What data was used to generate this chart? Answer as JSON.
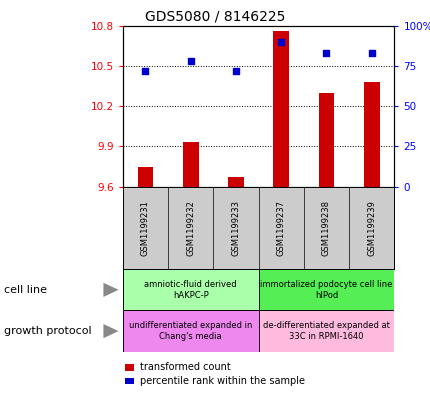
{
  "title": "GDS5080 / 8146225",
  "samples": [
    "GSM1199231",
    "GSM1199232",
    "GSM1199233",
    "GSM1199237",
    "GSM1199238",
    "GSM1199239"
  ],
  "transformed_counts": [
    9.75,
    9.93,
    9.67,
    10.76,
    10.3,
    10.38
  ],
  "percentile_ranks": [
    72,
    78,
    72,
    90,
    83,
    83
  ],
  "ylim_left": [
    9.6,
    10.8
  ],
  "ylim_right": [
    0,
    100
  ],
  "yticks_left": [
    9.6,
    9.9,
    10.2,
    10.5,
    10.8
  ],
  "yticks_right": [
    0,
    25,
    50,
    75,
    100
  ],
  "bar_color": "#cc0000",
  "dot_color": "#0000cc",
  "bar_bottom": 9.6,
  "cell_line_groups": [
    {
      "label": "amniotic-fluid derived\nhAKPC-P",
      "samples": [
        0,
        1,
        2
      ],
      "color": "#aaffaa"
    },
    {
      "label": "immortalized podocyte cell line\nhIPod",
      "samples": [
        3,
        4,
        5
      ],
      "color": "#55ee55"
    }
  ],
  "growth_protocol_groups": [
    {
      "label": "undifferentiated expanded in\nChang's media",
      "samples": [
        0,
        1,
        2
      ],
      "color": "#ee88ee"
    },
    {
      "label": "de-differentiated expanded at\n33C in RPMI-1640",
      "samples": [
        3,
        4,
        5
      ],
      "color": "#ffbbdd"
    }
  ],
  "legend_items": [
    {
      "label": "transformed count",
      "color": "#cc0000"
    },
    {
      "label": "percentile rank within the sample",
      "color": "#0000cc"
    }
  ],
  "sample_box_color": "#cccccc",
  "title_fontsize": 10,
  "axis_fontsize": 7.5,
  "sample_fontsize": 6,
  "cell_fontsize": 6,
  "legend_fontsize": 7
}
